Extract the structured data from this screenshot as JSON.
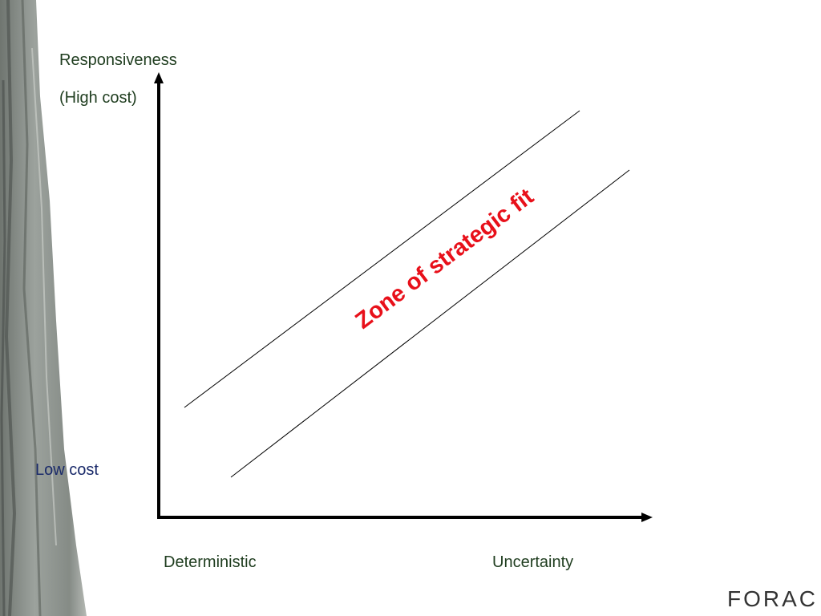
{
  "axes": {
    "y_label_top": "Responsiveness",
    "y_label_sub": "(High cost)",
    "y_label_bottom": "Low cost",
    "x_label_left": "Deterministic",
    "x_label_right": "Uncertainty"
  },
  "zone": {
    "label": "Zone of strategic fit"
  },
  "logo": {
    "text": "FORAC"
  }
}
